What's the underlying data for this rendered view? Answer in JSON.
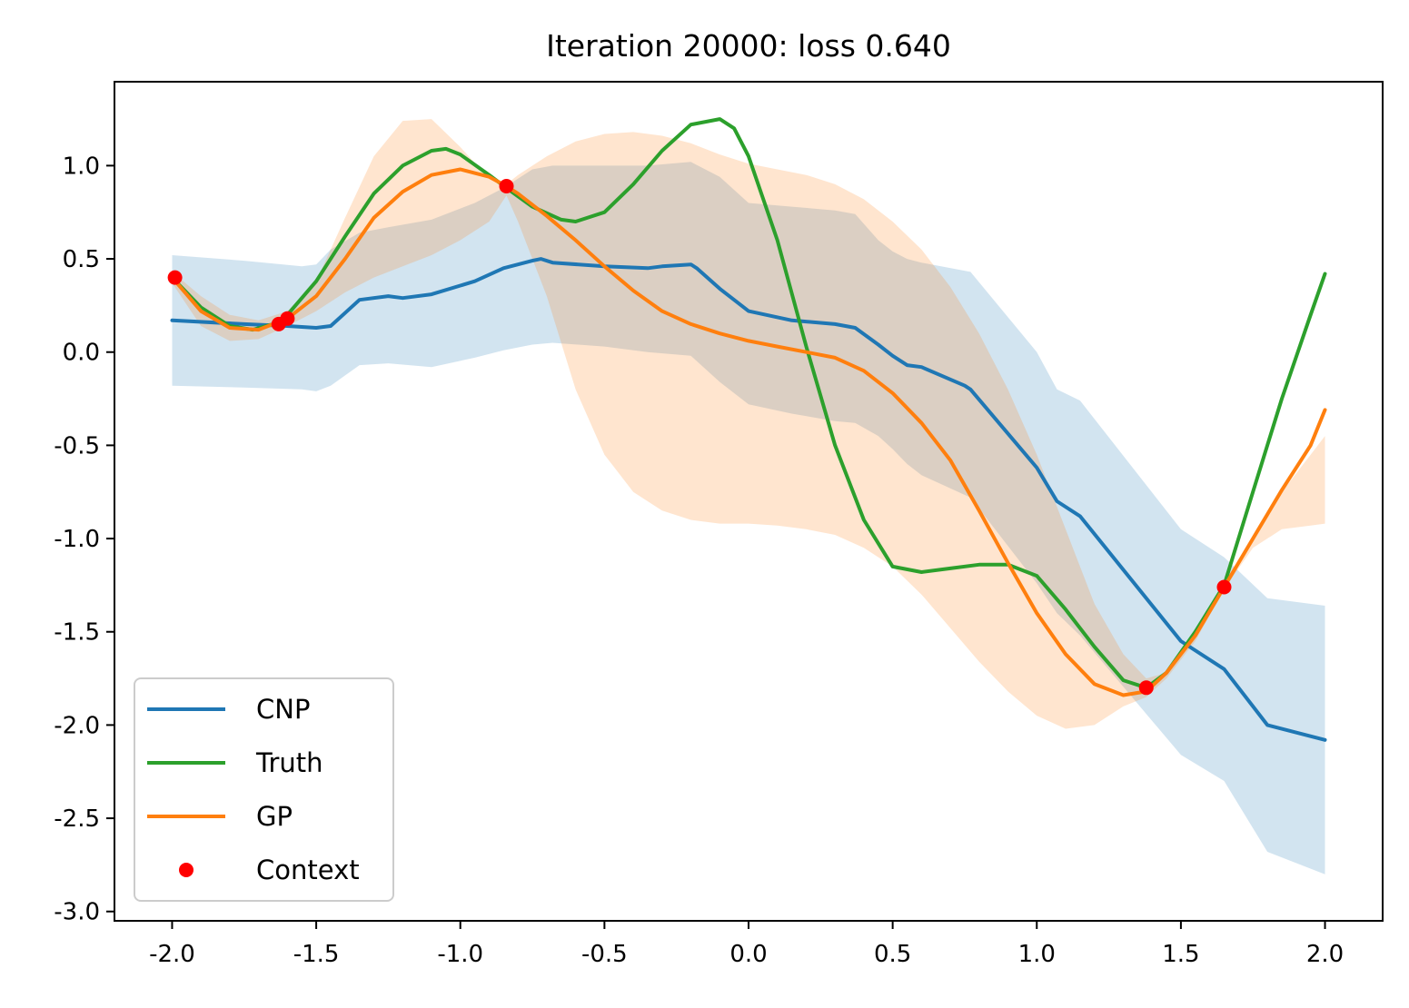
{
  "chart_data": {
    "type": "line",
    "title": "Iteration 20000: loss 0.640",
    "xlabel": "",
    "ylabel": "",
    "xlim": [
      -2.2,
      2.2
    ],
    "ylim": [
      -3.05,
      1.45
    ],
    "xticks": [
      -2.0,
      -1.5,
      -1.0,
      -0.5,
      0.0,
      0.5,
      1.0,
      1.5,
      2.0
    ],
    "xtick_labels": [
      "-2.0",
      "-1.5",
      "-1.0",
      "-0.5",
      "0.0",
      "0.5",
      "1.0",
      "1.5",
      "2.0"
    ],
    "yticks": [
      1.0,
      0.5,
      0.0,
      -0.5,
      -1.0,
      -1.5,
      -2.0,
      -2.5,
      -3.0
    ],
    "ytick_labels": [
      "1.0",
      "0.5",
      "0.0",
      "-0.5",
      "-1.0",
      "-1.5",
      "-2.0",
      "-2.5",
      "-3.0"
    ],
    "grid": false,
    "legend_position": "lower-left",
    "colors": {
      "cnp": "#1f77b4",
      "truth": "#2ca02c",
      "gp": "#ff7f0e",
      "context": "#ff0000",
      "cnp_band": "#1f77b4",
      "gp_band": "#ff7f0e"
    },
    "series": [
      {
        "name": "CNP",
        "kind": "line",
        "color": "#1f77b4",
        "x": [
          -2.0,
          -1.75,
          -1.6,
          -1.5,
          -1.45,
          -1.35,
          -1.25,
          -1.2,
          -1.1,
          -0.95,
          -0.85,
          -0.75,
          -0.72,
          -0.68,
          -0.5,
          -0.35,
          -0.3,
          -0.2,
          -0.18,
          -0.1,
          -0.05,
          0.0,
          0.15,
          0.3,
          0.37,
          0.45,
          0.5,
          0.55,
          0.6,
          0.75,
          0.77,
          1.0,
          1.07,
          1.15,
          1.5,
          1.65,
          1.8,
          2.0
        ],
        "y": [
          0.17,
          0.15,
          0.14,
          0.13,
          0.14,
          0.28,
          0.3,
          0.29,
          0.31,
          0.38,
          0.45,
          0.49,
          0.5,
          0.48,
          0.46,
          0.45,
          0.46,
          0.47,
          0.45,
          0.34,
          0.28,
          0.22,
          0.17,
          0.15,
          0.13,
          0.04,
          -0.02,
          -0.07,
          -0.08,
          -0.18,
          -0.2,
          -0.62,
          -0.8,
          -0.88,
          -1.55,
          -1.7,
          -2.0,
          -2.08
        ]
      },
      {
        "name": "Truth",
        "kind": "line",
        "color": "#2ca02c",
        "x": [
          -2.0,
          -1.9,
          -1.8,
          -1.72,
          -1.65,
          -1.6,
          -1.5,
          -1.4,
          -1.3,
          -1.2,
          -1.1,
          -1.05,
          -1.0,
          -0.9,
          -0.84,
          -0.75,
          -0.65,
          -0.6,
          -0.5,
          -0.4,
          -0.3,
          -0.2,
          -0.1,
          -0.05,
          0.0,
          0.1,
          0.2,
          0.3,
          0.4,
          0.5,
          0.6,
          0.7,
          0.8,
          0.9,
          1.0,
          1.1,
          1.2,
          1.3,
          1.38,
          1.45,
          1.55,
          1.65,
          1.75,
          1.85,
          1.95,
          2.0
        ],
        "y": [
          0.4,
          0.24,
          0.14,
          0.12,
          0.15,
          0.2,
          0.38,
          0.62,
          0.85,
          1.0,
          1.08,
          1.09,
          1.06,
          0.95,
          0.88,
          0.78,
          0.71,
          0.7,
          0.75,
          0.9,
          1.08,
          1.22,
          1.25,
          1.2,
          1.05,
          0.6,
          0.03,
          -0.5,
          -0.9,
          -1.15,
          -1.18,
          -1.16,
          -1.14,
          -1.14,
          -1.2,
          -1.38,
          -1.58,
          -1.76,
          -1.8,
          -1.72,
          -1.5,
          -1.25,
          -0.75,
          -0.25,
          0.2,
          0.42
        ]
      },
      {
        "name": "GP",
        "kind": "line",
        "color": "#ff7f0e",
        "x": [
          -2.0,
          -1.9,
          -1.8,
          -1.7,
          -1.6,
          -1.5,
          -1.4,
          -1.3,
          -1.2,
          -1.1,
          -1.0,
          -0.9,
          -0.84,
          -0.8,
          -0.7,
          -0.6,
          -0.5,
          -0.4,
          -0.3,
          -0.2,
          -0.1,
          0.0,
          0.1,
          0.2,
          0.3,
          0.4,
          0.5,
          0.6,
          0.7,
          0.8,
          0.9,
          1.0,
          1.1,
          1.2,
          1.3,
          1.38,
          1.45,
          1.55,
          1.65,
          1.75,
          1.85,
          1.95,
          2.0
        ],
        "y": [
          0.4,
          0.22,
          0.13,
          0.12,
          0.18,
          0.3,
          0.5,
          0.72,
          0.86,
          0.95,
          0.98,
          0.94,
          0.89,
          0.85,
          0.73,
          0.6,
          0.46,
          0.33,
          0.22,
          0.15,
          0.1,
          0.06,
          0.03,
          0.0,
          -0.03,
          -0.1,
          -0.22,
          -0.38,
          -0.58,
          -0.85,
          -1.13,
          -1.4,
          -1.62,
          -1.78,
          -1.84,
          -1.82,
          -1.72,
          -1.52,
          -1.26,
          -1.0,
          -0.74,
          -0.5,
          -0.31
        ]
      },
      {
        "name": "Context",
        "kind": "scatter",
        "color": "#ff0000",
        "x": [
          -1.99,
          -1.63,
          -1.6,
          -0.84,
          1.38,
          1.65
        ],
        "y": [
          0.4,
          0.15,
          0.18,
          0.89,
          -1.8,
          -1.26
        ]
      }
    ],
    "bands": [
      {
        "of": "CNP",
        "color": "#1f77b4",
        "opacity": 0.2,
        "x": [
          -2.0,
          -1.75,
          -1.55,
          -1.5,
          -1.45,
          -1.35,
          -1.25,
          -1.1,
          -0.95,
          -0.85,
          -0.75,
          -0.68,
          -0.5,
          -0.35,
          -0.2,
          -0.1,
          0.0,
          0.15,
          0.3,
          0.37,
          0.45,
          0.5,
          0.55,
          0.6,
          0.77,
          1.0,
          1.07,
          1.15,
          1.5,
          1.65,
          1.8,
          2.0
        ],
        "upper": [
          0.52,
          0.49,
          0.46,
          0.47,
          0.55,
          0.64,
          0.67,
          0.71,
          0.8,
          0.88,
          0.98,
          1.0,
          1.0,
          1.0,
          1.02,
          0.94,
          0.8,
          0.78,
          0.76,
          0.74,
          0.6,
          0.54,
          0.5,
          0.48,
          0.43,
          0.0,
          -0.2,
          -0.26,
          -0.95,
          -1.1,
          -1.32,
          -1.36
        ],
        "lower": [
          -0.18,
          -0.19,
          -0.2,
          -0.21,
          -0.18,
          -0.07,
          -0.06,
          -0.08,
          -0.03,
          0.01,
          0.04,
          0.05,
          0.03,
          0.0,
          -0.02,
          -0.16,
          -0.28,
          -0.33,
          -0.37,
          -0.38,
          -0.45,
          -0.52,
          -0.6,
          -0.66,
          -0.78,
          -1.24,
          -1.4,
          -1.52,
          -2.16,
          -2.3,
          -2.68,
          -2.8
        ]
      },
      {
        "of": "GP",
        "color": "#ff7f0e",
        "opacity": 0.2,
        "x": [
          -2.0,
          -1.9,
          -1.8,
          -1.7,
          -1.6,
          -1.5,
          -1.4,
          -1.3,
          -1.2,
          -1.1,
          -1.0,
          -0.9,
          -0.84,
          -0.8,
          -0.7,
          -0.6,
          -0.5,
          -0.4,
          -0.3,
          -0.2,
          -0.1,
          0.0,
          0.1,
          0.2,
          0.3,
          0.4,
          0.5,
          0.6,
          0.7,
          0.8,
          0.9,
          1.0,
          1.1,
          1.2,
          1.3,
          1.38,
          1.45,
          1.55,
          1.65,
          1.75,
          1.85,
          1.95,
          2.0
        ],
        "upper": [
          0.43,
          0.3,
          0.2,
          0.17,
          0.22,
          0.38,
          0.72,
          1.05,
          1.24,
          1.25,
          1.1,
          0.93,
          0.9,
          0.95,
          1.05,
          1.13,
          1.17,
          1.18,
          1.16,
          1.12,
          1.06,
          1.01,
          0.98,
          0.95,
          0.9,
          0.82,
          0.7,
          0.55,
          0.35,
          0.1,
          -0.2,
          -0.55,
          -0.95,
          -1.35,
          -1.62,
          -1.75,
          -1.72,
          -1.5,
          -1.23,
          -1.0,
          -0.75,
          -0.55,
          -0.45
        ],
        "lower": [
          0.37,
          0.14,
          0.06,
          0.07,
          0.14,
          0.22,
          0.32,
          0.4,
          0.46,
          0.52,
          0.6,
          0.7,
          0.84,
          0.7,
          0.3,
          -0.2,
          -0.55,
          -0.75,
          -0.85,
          -0.9,
          -0.92,
          -0.92,
          -0.93,
          -0.95,
          -0.98,
          -1.05,
          -1.15,
          -1.3,
          -1.48,
          -1.66,
          -1.82,
          -1.95,
          -2.02,
          -2.0,
          -1.9,
          -1.85,
          -1.75,
          -1.55,
          -1.27,
          -1.05,
          -0.95,
          -0.93,
          -0.92
        ]
      }
    ]
  }
}
